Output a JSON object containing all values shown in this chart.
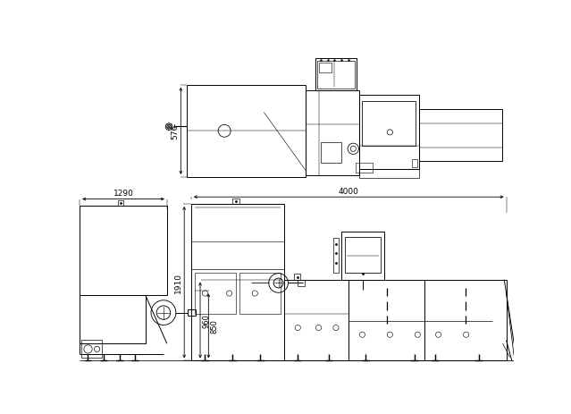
{
  "bg_color": "#ffffff",
  "lw": 0.7,
  "fig_w": 6.39,
  "fig_h": 4.64,
  "dims": {
    "top_view_576": "576",
    "front_1290": "1290",
    "front_4000": "4000",
    "front_1910": "1910",
    "front_960": "960",
    "front_850": "850"
  }
}
